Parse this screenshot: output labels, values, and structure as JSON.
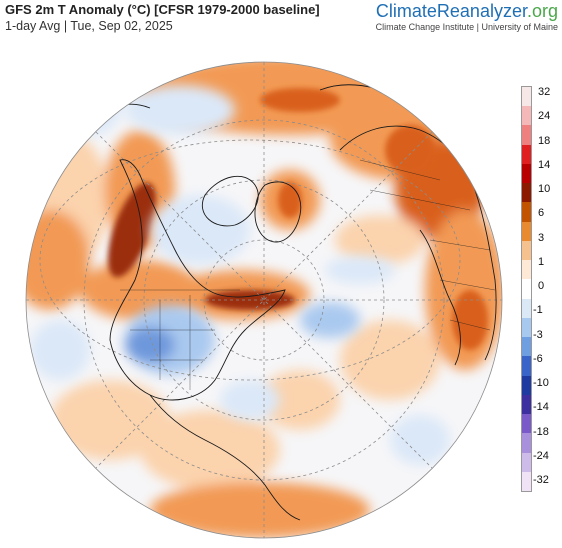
{
  "header": {
    "title": "GFS 2m T Anomaly (°C) [CFSR 1979-2000 baseline]",
    "subtitle": "1-day Avg | Tue, Sep 02, 2025"
  },
  "brand": {
    "name_part1": "Climate",
    "name_part2": "Reanalyzer",
    "name_part3": ".org",
    "tagline": "Climate Change Institute | University of Maine"
  },
  "colorbar": {
    "labels": [
      "32",
      "24",
      "18",
      "14",
      "10",
      "6",
      "3",
      "1",
      "0",
      "-1",
      "-3",
      "-6",
      "-10",
      "-14",
      "-18",
      "-24",
      "-32"
    ],
    "colors": [
      "#f7e8e8",
      "#f4b8b8",
      "#ef8080",
      "#e02020",
      "#b80000",
      "#8b1a00",
      "#c25400",
      "#e88a30",
      "#f5c28f",
      "#fde9d6",
      "#ffffff",
      "#dbe9f7",
      "#a8c9ef",
      "#6f9fe0",
      "#3b64c8",
      "#1f3aa0",
      "#3d2fa0",
      "#7a5ac8",
      "#a890dc",
      "#cdbbe9",
      "#efe3f5"
    ]
  },
  "map": {
    "projection": "orthographic",
    "center": "North Atlantic / North Pole",
    "palette": {
      "ocean_neutral": "#f6f6f8",
      "warm_light": "#fbd3ad",
      "warm_mid": "#f29a55",
      "warm_strong": "#d9601a",
      "warm_extreme": "#9b2d0e",
      "cool_light": "#dbe8f8",
      "cool_mid": "#aac9ef",
      "cool_strong": "#6e98dc",
      "coast": "#1a1a1a",
      "graticule": "#8c8c8c"
    }
  }
}
